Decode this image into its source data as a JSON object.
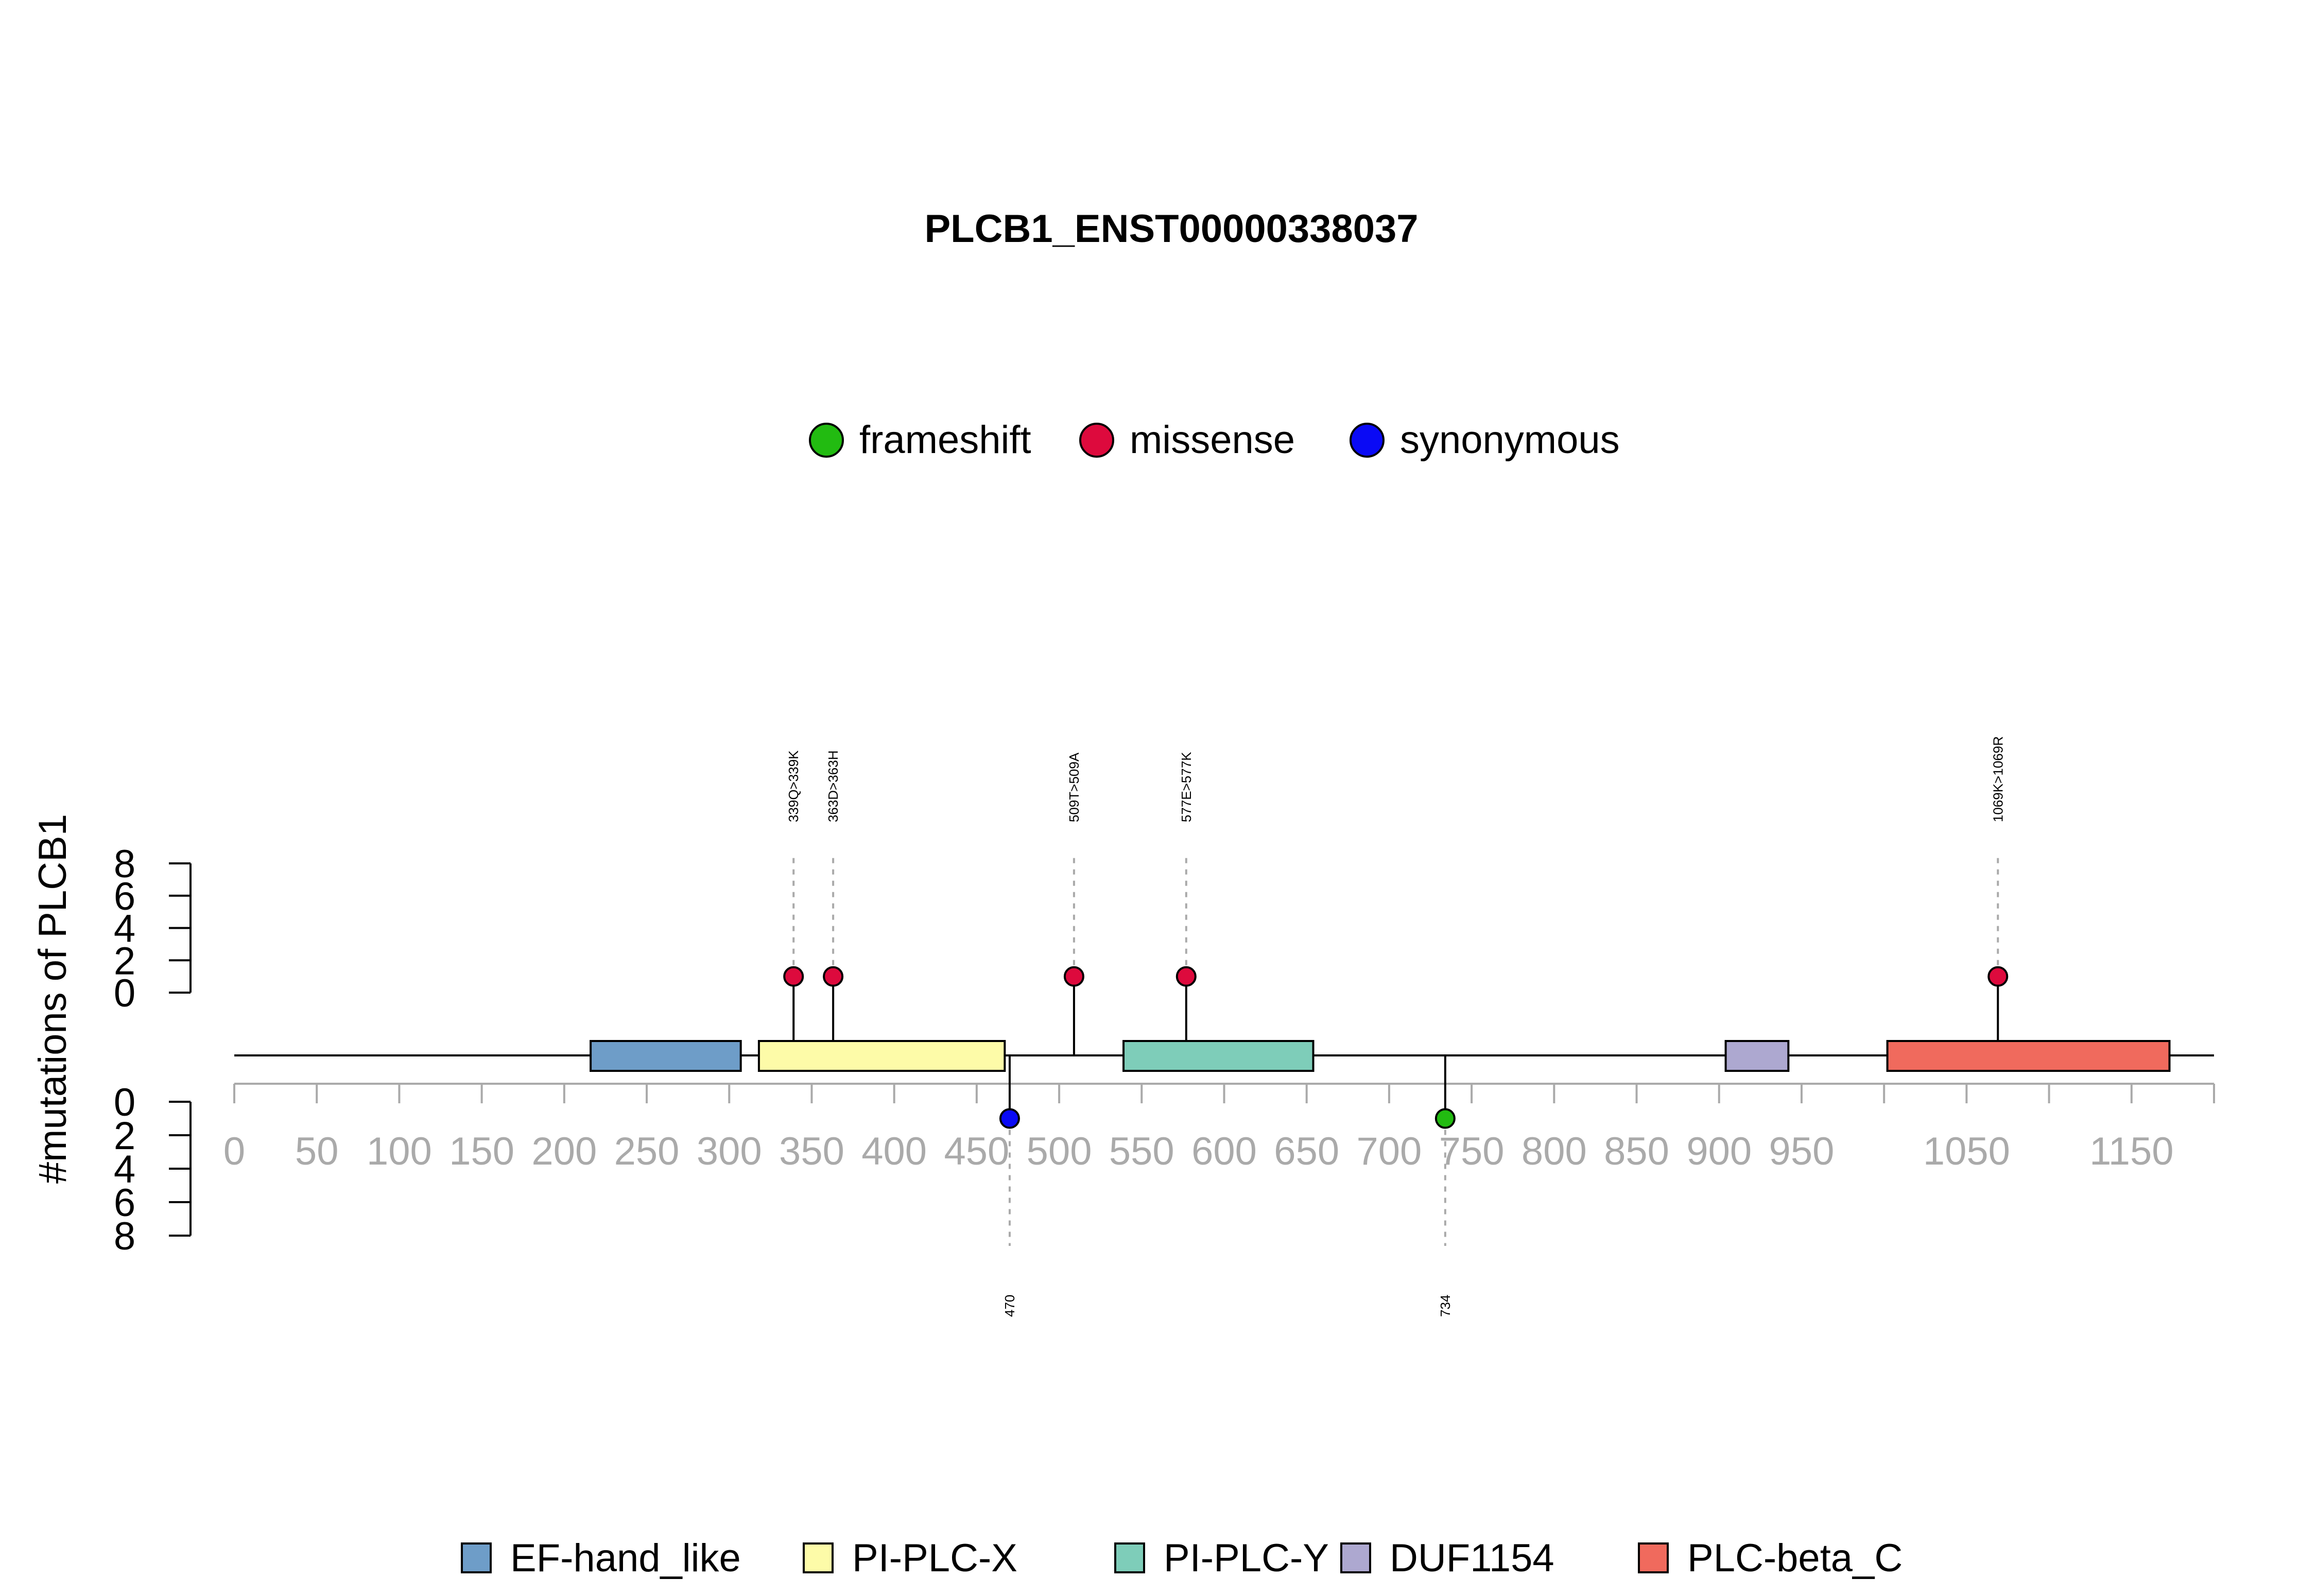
{
  "chart_data": {
    "type": "lollipop",
    "title": "PLCB1_ENST00000338037",
    "ylabel": "#mutations of PLCB1",
    "xlim": [
      0,
      1200
    ],
    "ylim": [
      0,
      8
    ],
    "x_ticks": [
      0,
      50,
      100,
      150,
      200,
      250,
      300,
      350,
      400,
      450,
      500,
      550,
      600,
      650,
      700,
      750,
      800,
      850,
      900,
      950,
      1000,
      1050,
      1100,
      1150,
      1200
    ],
    "x_tick_labels": [
      "0",
      "50",
      "100",
      "150",
      "200",
      "250",
      "300",
      "350",
      "400",
      "450",
      "500",
      "550",
      "600",
      "650",
      "700",
      "750",
      "800",
      "850",
      "900",
      "950",
      "1050",
      "1150"
    ],
    "x_tick_labels_at": [
      0,
      50,
      100,
      150,
      200,
      250,
      300,
      350,
      400,
      450,
      500,
      550,
      600,
      650,
      700,
      750,
      800,
      850,
      900,
      950,
      1050,
      1150
    ],
    "y_ticks": [
      "0",
      "2",
      "4",
      "6",
      "8"
    ],
    "y_tick_values": [
      0,
      2,
      4,
      6,
      8
    ],
    "mutation_legend": [
      {
        "name": "frameshift",
        "color": "#22BB11"
      },
      {
        "name": "missense",
        "color": "#DD0A3D"
      },
      {
        "name": "synonymous",
        "color": "#0A0AF5"
      }
    ],
    "domain_legend": [
      {
        "name": "EF-hand_like",
        "color": "#6E9DC8"
      },
      {
        "name": "PI-PLC-X",
        "color": "#FDFBA8"
      },
      {
        "name": "PI-PLC-Y",
        "color": "#7ECDB9"
      },
      {
        "name": "DUF1154",
        "color": "#ADA8D0"
      },
      {
        "name": "PLC-beta_C",
        "color": "#F06A5D"
      }
    ],
    "domains": [
      {
        "name": "EF-hand_like",
        "start": 216,
        "end": 307,
        "color": "#6E9DC8"
      },
      {
        "name": "PI-PLC-X",
        "start": 318,
        "end": 467,
        "color": "#FDFBA8"
      },
      {
        "name": "PI-PLC-Y",
        "start": 539,
        "end": 654,
        "color": "#7ECDB9"
      },
      {
        "name": "DUF1154",
        "start": 904,
        "end": 942,
        "color": "#ADA8D0"
      },
      {
        "name": "PLC-beta_C",
        "start": 1002,
        "end": 1173,
        "color": "#F06A5D"
      }
    ],
    "protein_length": 1200,
    "mutations_above": [
      {
        "pos": 339,
        "count": 1,
        "type": "missense",
        "label": "339Q>339K"
      },
      {
        "pos": 363,
        "count": 1,
        "type": "missense",
        "label": "363D>363H"
      },
      {
        "pos": 509,
        "count": 1,
        "type": "missense",
        "label": "509T>509A"
      },
      {
        "pos": 577,
        "count": 1,
        "type": "missense",
        "label": "577E>577K"
      },
      {
        "pos": 1069,
        "count": 1,
        "type": "missense",
        "label": "1069K>1069R"
      }
    ],
    "mutations_below": [
      {
        "pos": 470,
        "count": 1,
        "type": "synonymous",
        "label": "470"
      },
      {
        "pos": 734,
        "count": 1,
        "type": "frameshift",
        "label": "734"
      }
    ]
  }
}
